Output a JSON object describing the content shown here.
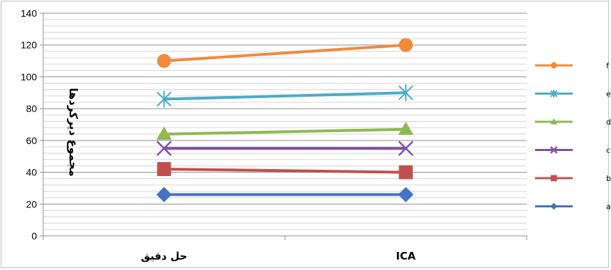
{
  "chart_data": {
    "type": "line",
    "title": "",
    "xlabel": "",
    "ylabel": "مجموع دیرکردها",
    "categories": [
      "حل دقیق",
      "ICA"
    ],
    "ylim": [
      0,
      140
    ],
    "y_ticks": [
      "0",
      "20",
      "40",
      "60",
      "80",
      "100",
      "120",
      "140"
    ],
    "grid": true,
    "minor_grid": true,
    "legend_position": "right",
    "series": [
      {
        "name": "مساله a",
        "values": [
          26,
          26
        ],
        "color": "#4472c4",
        "marker": "diamond"
      },
      {
        "name": "مساله b",
        "values": [
          42,
          40
        ],
        "color": "#c0504d",
        "marker": "square"
      },
      {
        "name": "مساله c",
        "values": [
          55,
          55
        ],
        "color": "#7f4fa6",
        "marker": "x"
      },
      {
        "name": "مساله d",
        "values": [
          64,
          67
        ],
        "color": "#8fb84f",
        "marker": "triangle"
      },
      {
        "name": "مساله e",
        "values": [
          86,
          90
        ],
        "color": "#4aacc6",
        "marker": "star"
      },
      {
        "name": "مساله f",
        "values": [
          110,
          120
        ],
        "color": "#f08a3c",
        "marker": "circle"
      }
    ]
  }
}
